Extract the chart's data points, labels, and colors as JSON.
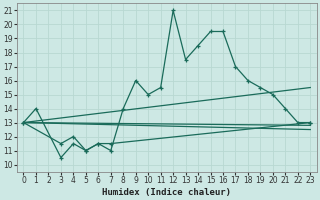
{
  "xlabel": "Humidex (Indice chaleur)",
  "bg_color": "#cde8e4",
  "grid_color": "#b8d8d2",
  "line_color": "#1a6b5a",
  "xlim": [
    -0.5,
    23.5
  ],
  "ylim": [
    9.5,
    21.5
  ],
  "xticks": [
    0,
    1,
    2,
    3,
    4,
    5,
    6,
    7,
    8,
    9,
    10,
    11,
    12,
    13,
    14,
    15,
    16,
    17,
    18,
    19,
    20,
    21,
    22,
    23
  ],
  "yticks": [
    10,
    11,
    12,
    13,
    14,
    15,
    16,
    17,
    18,
    19,
    20,
    21
  ],
  "series1_x": [
    0,
    1,
    3,
    4,
    5,
    6,
    7,
    8,
    9,
    10,
    11,
    12,
    13,
    14,
    15,
    16,
    17,
    18,
    19,
    20,
    21,
    22,
    23
  ],
  "series1_y": [
    13,
    14,
    10.5,
    11.5,
    11.0,
    11.5,
    11.0,
    14.0,
    16.0,
    15.0,
    15.5,
    21.0,
    17.5,
    18.5,
    19.5,
    19.5,
    17.0,
    16.0,
    15.5,
    15.0,
    14.0,
    13.0,
    13.0
  ],
  "series2_x": [
    0,
    3,
    4,
    5,
    6,
    7,
    23
  ],
  "series2_y": [
    13,
    11.5,
    12.0,
    11.0,
    11.5,
    11.5,
    13.0
  ],
  "trend1_x": [
    0,
    23
  ],
  "trend1_y": [
    13,
    15.5
  ],
  "trend2_x": [
    0,
    23
  ],
  "trend2_y": [
    13,
    12.5
  ],
  "trend3_x": [
    0,
    23
  ],
  "trend3_y": [
    13,
    12.8
  ]
}
